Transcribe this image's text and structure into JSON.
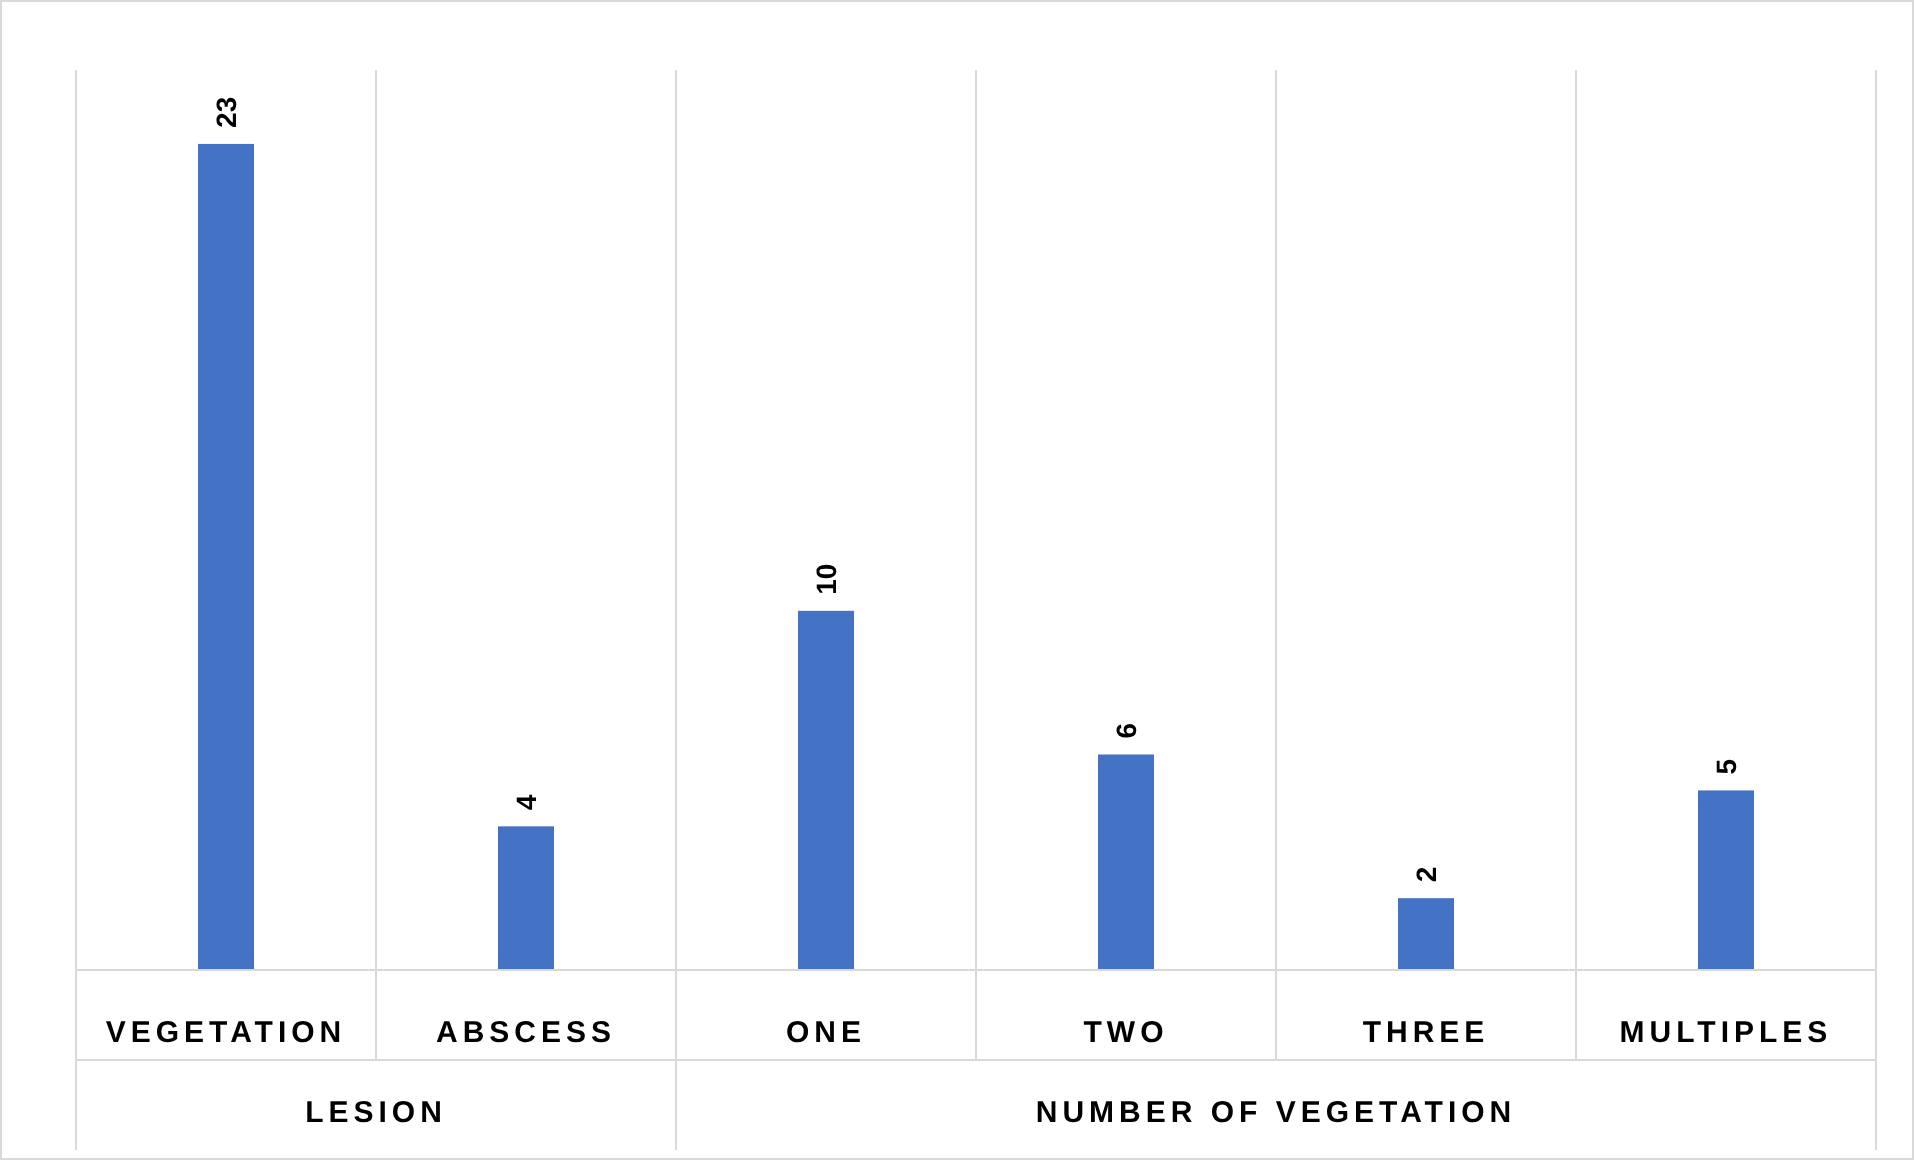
{
  "chart_data": {
    "type": "bar",
    "categories": [
      "VEGETATION",
      "ABSCESS",
      "ONE",
      "TWO",
      "THREE",
      "MULTIPLES"
    ],
    "values": [
      23,
      4,
      10,
      6,
      2,
      5
    ],
    "color": "#4472c4",
    "data_labels": true,
    "tick_labels": "x",
    "annotations": [
      "LESION",
      "NUMBER OF VEGETATION"
    ]
  }
}
